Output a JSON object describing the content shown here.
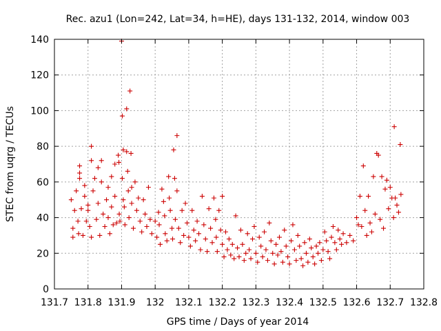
{
  "chart_data": {
    "type": "scatter",
    "title": "Rec. azu1 (Lon=242, Lat=34, h=HE), days 131-132, 2014, window 003",
    "xlabel": "GPS time / Days of year 2014",
    "ylabel": "STEC from uqrg / TECUs",
    "xlim": [
      131.7,
      132.8
    ],
    "ylim": [
      0,
      140
    ],
    "xticks": [
      {
        "value": 131.7,
        "label": "131.7"
      },
      {
        "value": 131.8,
        "label": "131.8"
      },
      {
        "value": 131.9,
        "label": "131.9"
      },
      {
        "value": 132.0,
        "label": "132"
      },
      {
        "value": 132.1,
        "label": "132.1"
      },
      {
        "value": 132.2,
        "label": "132.2"
      },
      {
        "value": 132.3,
        "label": "132.3"
      },
      {
        "value": 132.4,
        "label": "132.4"
      },
      {
        "value": 132.5,
        "label": "132.5"
      },
      {
        "value": 132.6,
        "label": "132.6"
      },
      {
        "value": 132.7,
        "label": "132.7"
      },
      {
        "value": 132.8,
        "label": "132.8"
      }
    ],
    "yticks": [
      {
        "value": 0,
        "label": "0"
      },
      {
        "value": 20,
        "label": "20"
      },
      {
        "value": 40,
        "label": "40"
      },
      {
        "value": 60,
        "label": "60"
      },
      {
        "value": 80,
        "label": "80"
      },
      {
        "value": 100,
        "label": "100"
      },
      {
        "value": 120,
        "label": "120"
      },
      {
        "value": 140,
        "label": "140"
      }
    ],
    "grid": true,
    "marker": "plus",
    "color": "#cc0000",
    "series": [
      {
        "points": [
          [
            131.75,
            50
          ],
          [
            131.755,
            34
          ],
          [
            131.755,
            29
          ],
          [
            131.76,
            44
          ],
          [
            131.765,
            55
          ],
          [
            131.77,
            38
          ],
          [
            131.772,
            31
          ],
          [
            131.775,
            62
          ],
          [
            131.775,
            69
          ],
          [
            131.775,
            65
          ],
          [
            131.78,
            45
          ],
          [
            131.785,
            30
          ],
          [
            131.79,
            58
          ],
          [
            131.79,
            52
          ],
          [
            131.795,
            38
          ],
          [
            131.8,
            47
          ],
          [
            131.8,
            44
          ],
          [
            131.805,
            35
          ],
          [
            131.81,
            80
          ],
          [
            131.81,
            72
          ],
          [
            131.81,
            29
          ],
          [
            131.815,
            55
          ],
          [
            131.82,
            62
          ],
          [
            131.825,
            39
          ],
          [
            131.83,
            68
          ],
          [
            131.83,
            48
          ],
          [
            131.835,
            30
          ],
          [
            131.84,
            72
          ],
          [
            131.84,
            60
          ],
          [
            131.845,
            42
          ],
          [
            131.85,
            35
          ],
          [
            131.855,
            50
          ],
          [
            131.86,
            57
          ],
          [
            131.86,
            40
          ],
          [
            131.865,
            31
          ],
          [
            131.87,
            63
          ],
          [
            131.87,
            46
          ],
          [
            131.875,
            36
          ],
          [
            131.88,
            70
          ],
          [
            131.88,
            52
          ],
          [
            131.885,
            37
          ],
          [
            131.89,
            75
          ],
          [
            131.892,
            71
          ],
          [
            131.893,
            42
          ],
          [
            131.895,
            38
          ],
          [
            131.9,
            139
          ],
          [
            131.902,
            97
          ],
          [
            131.902,
            62
          ],
          [
            131.905,
            78
          ],
          [
            131.905,
            50
          ],
          [
            131.908,
            46
          ],
          [
            131.91,
            36
          ],
          [
            131.915,
            101
          ],
          [
            131.915,
            77
          ],
          [
            131.918,
            66
          ],
          [
            131.92,
            55
          ],
          [
            131.922,
            40
          ],
          [
            131.925,
            111
          ],
          [
            131.928,
            76
          ],
          [
            131.93,
            57
          ],
          [
            131.93,
            48
          ],
          [
            131.935,
            34
          ],
          [
            131.94,
            60
          ],
          [
            131.945,
            44
          ],
          [
            131.95,
            51
          ],
          [
            131.955,
            38
          ],
          [
            131.96,
            32
          ],
          [
            131.965,
            50
          ],
          [
            131.97,
            42
          ],
          [
            131.975,
            35
          ],
          [
            131.98,
            57
          ],
          [
            131.985,
            39
          ],
          [
            131.99,
            31
          ],
          [
            132.0,
            38
          ],
          [
            132.005,
            29
          ],
          [
            132.01,
            43
          ],
          [
            132.012,
            36
          ],
          [
            132.015,
            25
          ],
          [
            132.02,
            56
          ],
          [
            132.025,
            49
          ],
          [
            132.028,
            41
          ],
          [
            132.03,
            31
          ],
          [
            132.035,
            27
          ],
          [
            132.04,
            63
          ],
          [
            132.042,
            51
          ],
          [
            132.045,
            44
          ],
          [
            132.05,
            34
          ],
          [
            132.052,
            28
          ],
          [
            132.055,
            78
          ],
          [
            132.058,
            62
          ],
          [
            132.06,
            39
          ],
          [
            132.065,
            86
          ],
          [
            132.065,
            55
          ],
          [
            132.07,
            34
          ],
          [
            132.075,
            26
          ],
          [
            132.08,
            44
          ],
          [
            132.085,
            30
          ],
          [
            132.09,
            48
          ],
          [
            132.095,
            37
          ],
          [
            132.1,
            29
          ],
          [
            132.105,
            24
          ],
          [
            132.11,
            44
          ],
          [
            132.115,
            33
          ],
          [
            132.12,
            27
          ],
          [
            132.125,
            38
          ],
          [
            132.13,
            31
          ],
          [
            132.135,
            22
          ],
          [
            132.14,
            52
          ],
          [
            132.145,
            36
          ],
          [
            132.15,
            28
          ],
          [
            132.155,
            21
          ],
          [
            132.16,
            45
          ],
          [
            132.165,
            34
          ],
          [
            132.17,
            26
          ],
          [
            132.175,
            51
          ],
          [
            132.18,
            39
          ],
          [
            132.182,
            29
          ],
          [
            132.185,
            21
          ],
          [
            132.19,
            44
          ],
          [
            132.195,
            33
          ],
          [
            132.2,
            52
          ],
          [
            132.2,
            25
          ],
          [
            132.205,
            18
          ],
          [
            132.21,
            32
          ],
          [
            132.215,
            22
          ],
          [
            132.22,
            28
          ],
          [
            132.225,
            19
          ],
          [
            132.23,
            25
          ],
          [
            132.235,
            17
          ],
          [
            132.24,
            41
          ],
          [
            132.245,
            23
          ],
          [
            132.25,
            18
          ],
          [
            132.255,
            33
          ],
          [
            132.26,
            25
          ],
          [
            132.265,
            16
          ],
          [
            132.27,
            20
          ],
          [
            132.275,
            31
          ],
          [
            132.28,
            22
          ],
          [
            132.285,
            17
          ],
          [
            132.29,
            28
          ],
          [
            132.295,
            35
          ],
          [
            132.3,
            20
          ],
          [
            132.305,
            15
          ],
          [
            132.31,
            29
          ],
          [
            132.315,
            24
          ],
          [
            132.32,
            18
          ],
          [
            132.325,
            32
          ],
          [
            132.33,
            22
          ],
          [
            132.335,
            16
          ],
          [
            132.34,
            37
          ],
          [
            132.345,
            27
          ],
          [
            132.35,
            20
          ],
          [
            132.355,
            14
          ],
          [
            132.36,
            25
          ],
          [
            132.365,
            19
          ],
          [
            132.37,
            29
          ],
          [
            132.375,
            21
          ],
          [
            132.38,
            15
          ],
          [
            132.385,
            33
          ],
          [
            132.39,
            24
          ],
          [
            132.395,
            18
          ],
          [
            132.4,
            14
          ],
          [
            132.405,
            27
          ],
          [
            132.41,
            36
          ],
          [
            132.415,
            22
          ],
          [
            132.42,
            16
          ],
          [
            132.425,
            30
          ],
          [
            132.43,
            24
          ],
          [
            132.435,
            17
          ],
          [
            132.44,
            13
          ],
          [
            132.445,
            26
          ],
          [
            132.45,
            20
          ],
          [
            132.455,
            15
          ],
          [
            132.46,
            28
          ],
          [
            132.465,
            23
          ],
          [
            132.47,
            18
          ],
          [
            132.475,
            14
          ],
          [
            132.48,
            24
          ],
          [
            132.485,
            20
          ],
          [
            132.49,
            26
          ],
          [
            132.495,
            16
          ],
          [
            132.5,
            22
          ],
          [
            132.505,
            32
          ],
          [
            132.51,
            27
          ],
          [
            132.515,
            21
          ],
          [
            132.52,
            17
          ],
          [
            132.525,
            29
          ],
          [
            132.53,
            35
          ],
          [
            132.535,
            26
          ],
          [
            132.54,
            22
          ],
          [
            132.545,
            33
          ],
          [
            132.55,
            28
          ],
          [
            132.555,
            25
          ],
          [
            132.56,
            31
          ],
          [
            132.57,
            26
          ],
          [
            132.58,
            30
          ],
          [
            132.59,
            27
          ],
          [
            132.6,
            40
          ],
          [
            132.605,
            36
          ],
          [
            132.61,
            52
          ],
          [
            132.615,
            35
          ],
          [
            132.62,
            69
          ],
          [
            132.625,
            44
          ],
          [
            132.63,
            30
          ],
          [
            132.635,
            52
          ],
          [
            132.64,
            37
          ],
          [
            132.645,
            32
          ],
          [
            132.65,
            63
          ],
          [
            132.655,
            42
          ],
          [
            132.66,
            76
          ],
          [
            132.665,
            75
          ],
          [
            132.67,
            39
          ],
          [
            132.675,
            63
          ],
          [
            132.68,
            34
          ],
          [
            132.685,
            56
          ],
          [
            132.69,
            61
          ],
          [
            132.695,
            45
          ],
          [
            132.7,
            57
          ],
          [
            132.705,
            51
          ],
          [
            132.71,
            40
          ],
          [
            132.712,
            91
          ],
          [
            132.715,
            51
          ],
          [
            132.72,
            47
          ],
          [
            132.725,
            43
          ],
          [
            132.73,
            81
          ],
          [
            132.732,
            53
          ]
        ]
      }
    ]
  }
}
